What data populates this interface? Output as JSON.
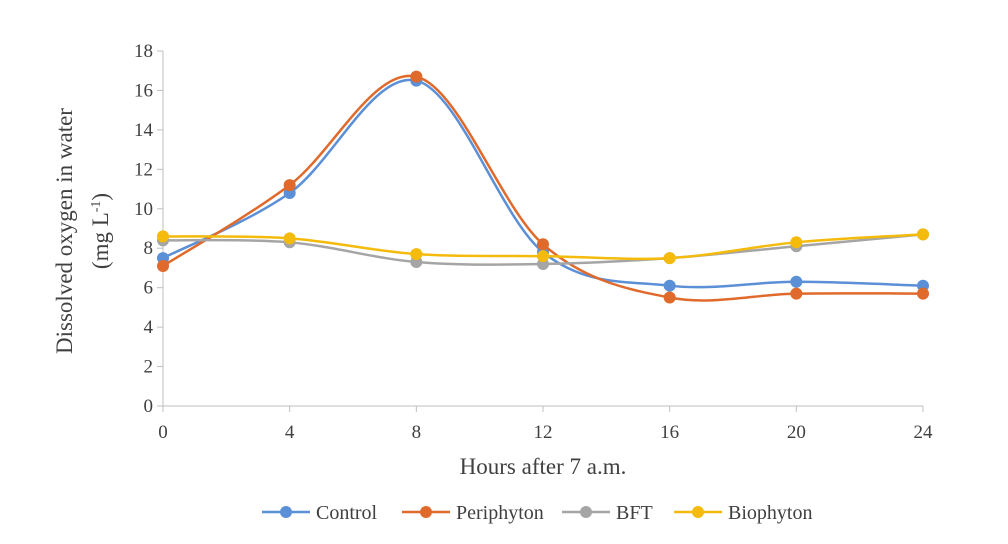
{
  "chart_data": {
    "type": "line",
    "smooth": true,
    "xlabel": "Hours after 7 a.m.",
    "ylabel_line1": "Dissolved oxygen in water",
    "ylabel_line2_prefix": "(mg L",
    "ylabel_line2_sup": "-1",
    "ylabel_line2_suffix": ")",
    "x": [
      0,
      4,
      8,
      12,
      16,
      20,
      24
    ],
    "xlim": [
      0,
      24
    ],
    "ylim": [
      0,
      18
    ],
    "yticks": [
      0,
      2,
      4,
      6,
      8,
      10,
      12,
      14,
      16,
      18
    ],
    "grid": false,
    "legend_position": "bottom",
    "series": [
      {
        "name": "Control",
        "color": "#5B8FD6",
        "values": [
          7.5,
          10.8,
          16.5,
          7.8,
          6.1,
          6.3,
          6.1
        ]
      },
      {
        "name": "Periphyton",
        "color": "#E06A2C",
        "values": [
          7.1,
          11.2,
          16.7,
          8.2,
          5.5,
          5.7,
          5.7
        ]
      },
      {
        "name": "BFT",
        "color": "#A5A5A5",
        "values": [
          8.4,
          8.3,
          7.3,
          7.2,
          7.5,
          8.1,
          8.7
        ]
      },
      {
        "name": "Biophyton",
        "color": "#F4BA0C",
        "values": [
          8.6,
          8.5,
          7.7,
          7.6,
          7.5,
          8.3,
          8.7
        ]
      }
    ]
  }
}
